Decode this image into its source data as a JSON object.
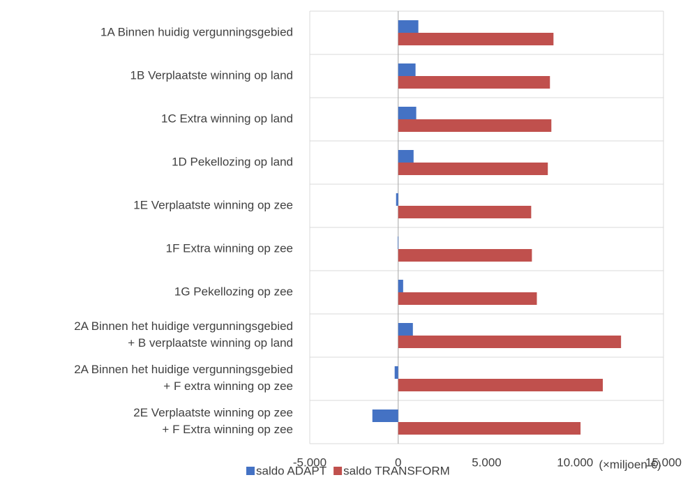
{
  "chart_data": {
    "type": "hbar",
    "categories": [
      "1A Binnen huidig vergunningsgebied",
      "1B Verplaatste winning op land",
      "1C Extra winning op land",
      "1D Pekellozing op land",
      "1E Verplaatste winning op zee",
      "1F Extra winning op zee",
      "1G Pekellozing op zee",
      "2A Binnen het huidige vergunningsgebied\n+ B verplaatste winning op land",
      "2A Binnen het huidige vergunningsgebied\n+ F extra winning op zee",
      "2E Verplaatste winning op zee\n+ F Extra winning op zee"
    ],
    "series": [
      {
        "name": "saldo ADAPT",
        "color": "#4472c4",
        "values": [
          1140,
          980,
          1020,
          870,
          -120,
          -30,
          280,
          830,
          -200,
          -1460
        ]
      },
      {
        "name": "saldo TRANSFORM",
        "color": "#c0504d",
        "values": [
          8780,
          8580,
          8660,
          8460,
          7520,
          7560,
          7840,
          12600,
          11570,
          10310
        ]
      }
    ],
    "x_label": "(×miljoen €)",
    "xlim": [
      -5000,
      15000
    ],
    "xticks": [
      {
        "value": -5000,
        "label": "-5.000"
      },
      0,
      {
        "value": 5000,
        "label": "5.000"
      },
      {
        "value": 10000,
        "label": "10.000"
      },
      {
        "value": 15000,
        "label": "15.000"
      }
    ],
    "legend": "bottom"
  }
}
